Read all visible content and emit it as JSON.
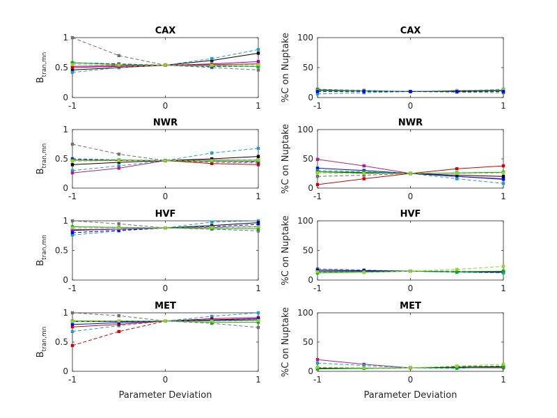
{
  "palette": {
    "black": "#000000",
    "gray": "#707070",
    "blue": "#0000ff",
    "cyan": "#1f9cc8",
    "purple": "#9400d3",
    "magenta": "#b0207a",
    "red": "#d00000",
    "green": "#00b000",
    "yellowgreen": "#9acd32",
    "olive": "#6b8e23"
  },
  "chart_data": [
    {
      "id": "left-cax",
      "type": "line",
      "title": "CAX",
      "ylabel_main": "B",
      "ylabel_sub": "tran,mn",
      "xlabel": "",
      "xlim": [
        -1,
        1
      ],
      "ylim": [
        0,
        1
      ],
      "xticks": [
        "-1",
        "0",
        "1"
      ],
      "yticks": [
        "0",
        "0.5",
        "1"
      ],
      "x": [
        -1,
        -0.5,
        0,
        0.5,
        1
      ],
      "series": [
        {
          "color": "gray",
          "dashed": true,
          "values": [
            1.0,
            0.7,
            0.54,
            0.5,
            0.46
          ]
        },
        {
          "color": "black",
          "dashed": false,
          "values": [
            0.46,
            0.5,
            0.54,
            0.62,
            0.74
          ]
        },
        {
          "color": "cyan",
          "dashed": true,
          "values": [
            0.42,
            0.5,
            0.54,
            0.65,
            0.8
          ]
        },
        {
          "color": "purple",
          "dashed": false,
          "values": [
            0.52,
            0.53,
            0.54,
            0.56,
            0.6
          ]
        },
        {
          "color": "blue",
          "dashed": true,
          "values": [
            0.58,
            0.56,
            0.54,
            0.52,
            0.52
          ]
        },
        {
          "color": "green",
          "dashed": false,
          "values": [
            0.58,
            0.55,
            0.54,
            0.53,
            0.52
          ]
        },
        {
          "color": "red",
          "dashed": false,
          "values": [
            0.5,
            0.52,
            0.54,
            0.55,
            0.56
          ]
        },
        {
          "color": "yellowgreen",
          "dashed": true,
          "values": [
            0.55,
            0.54,
            0.54,
            0.54,
            0.55
          ]
        }
      ]
    },
    {
      "id": "right-cax",
      "type": "line",
      "title": "CAX",
      "ylabel_main": "%C on Nuptake",
      "ylabel_sub": "",
      "xlabel": "",
      "xlim": [
        -1,
        1
      ],
      "ylim": [
        0,
        100
      ],
      "xticks": [
        "-1",
        "0",
        "1"
      ],
      "yticks": [
        "0",
        "50",
        "100"
      ],
      "x": [
        -1,
        -0.5,
        0,
        0.5,
        1
      ],
      "series": [
        {
          "color": "cyan",
          "dashed": true,
          "values": [
            6,
            8,
            10,
            11,
            14
          ]
        },
        {
          "color": "gray",
          "dashed": true,
          "values": [
            14,
            12,
            10,
            9,
            8
          ]
        },
        {
          "color": "black",
          "dashed": false,
          "values": [
            12,
            11,
            10,
            11,
            12
          ]
        },
        {
          "color": "green",
          "dashed": false,
          "values": [
            13,
            11,
            10,
            10,
            11
          ]
        },
        {
          "color": "yellowgreen",
          "dashed": true,
          "values": [
            11,
            10,
            10,
            12,
            13
          ]
        },
        {
          "color": "blue",
          "dashed": true,
          "values": [
            10,
            10,
            10,
            10,
            10
          ]
        }
      ]
    },
    {
      "id": "left-nwr",
      "type": "line",
      "title": "NWR",
      "ylabel_main": "B",
      "ylabel_sub": "tran,mn",
      "xlabel": "",
      "xlim": [
        -1,
        1
      ],
      "ylim": [
        0,
        1
      ],
      "xticks": [
        "-1",
        "0",
        "1"
      ],
      "yticks": [
        "0",
        "0.5",
        "1"
      ],
      "x": [
        -1,
        -0.5,
        0,
        0.5,
        1
      ],
      "series": [
        {
          "color": "gray",
          "dashed": true,
          "values": [
            0.75,
            0.58,
            0.47,
            0.44,
            0.43
          ]
        },
        {
          "color": "cyan",
          "dashed": true,
          "values": [
            0.3,
            0.38,
            0.47,
            0.6,
            0.68
          ]
        },
        {
          "color": "magenta",
          "dashed": false,
          "values": [
            0.26,
            0.34,
            0.47,
            0.48,
            0.48
          ]
        },
        {
          "color": "black",
          "dashed": false,
          "values": [
            0.4,
            0.44,
            0.47,
            0.5,
            0.54
          ]
        },
        {
          "color": "red",
          "dashed": false,
          "values": [
            0.48,
            0.47,
            0.47,
            0.42,
            0.4
          ]
        },
        {
          "color": "blue",
          "dashed": true,
          "values": [
            0.5,
            0.48,
            0.47,
            0.46,
            0.45
          ]
        },
        {
          "color": "green",
          "dashed": false,
          "values": [
            0.48,
            0.48,
            0.47,
            0.46,
            0.46
          ]
        },
        {
          "color": "yellowgreen",
          "dashed": true,
          "values": [
            0.46,
            0.47,
            0.47,
            0.47,
            0.48
          ]
        }
      ]
    },
    {
      "id": "right-nwr",
      "type": "line",
      "title": "NWR",
      "ylabel_main": "%C on Nuptake",
      "ylabel_sub": "",
      "xlabel": "",
      "xlim": [
        -1,
        1
      ],
      "ylim": [
        0,
        100
      ],
      "xticks": [
        "-1",
        "0",
        "1"
      ],
      "yticks": [
        "0",
        "50",
        "100"
      ],
      "x": [
        -1,
        -0.5,
        0,
        0.5,
        1
      ],
      "series": [
        {
          "color": "magenta",
          "dashed": false,
          "values": [
            49,
            38,
            25,
            20,
            16
          ]
        },
        {
          "color": "red",
          "dashed": false,
          "values": [
            6,
            16,
            25,
            33,
            38
          ]
        },
        {
          "color": "blue",
          "dashed": false,
          "values": [
            34,
            30,
            25,
            20,
            15
          ]
        },
        {
          "color": "cyan",
          "dashed": true,
          "values": [
            30,
            28,
            25,
            16,
            8
          ]
        },
        {
          "color": "black",
          "dashed": false,
          "values": [
            28,
            26,
            25,
            22,
            20
          ]
        },
        {
          "color": "gray",
          "dashed": true,
          "values": [
            20,
            22,
            25,
            26,
            27
          ]
        },
        {
          "color": "green",
          "dashed": false,
          "values": [
            28,
            27,
            25,
            26,
            27
          ]
        },
        {
          "color": "yellowgreen",
          "dashed": true,
          "values": [
            26,
            25,
            25,
            25,
            26
          ]
        }
      ]
    },
    {
      "id": "left-hvf",
      "type": "line",
      "title": "HVF",
      "ylabel_main": "B",
      "ylabel_sub": "tran,mn",
      "xlabel": "",
      "xlim": [
        -1,
        1
      ],
      "ylim": [
        0,
        1
      ],
      "xticks": [
        "-1",
        "0",
        "1"
      ],
      "yticks": [
        "0",
        "0.5",
        "1"
      ],
      "x": [
        -1,
        -0.5,
        0,
        0.5,
        1
      ],
      "series": [
        {
          "color": "gray",
          "dashed": true,
          "values": [
            1.0,
            0.95,
            0.88,
            0.86,
            0.83
          ]
        },
        {
          "color": "cyan",
          "dashed": true,
          "values": [
            0.76,
            0.83,
            0.88,
            0.98,
            1.0
          ]
        },
        {
          "color": "black",
          "dashed": false,
          "values": [
            0.84,
            0.86,
            0.88,
            0.92,
            0.97
          ]
        },
        {
          "color": "blue",
          "dashed": true,
          "values": [
            0.8,
            0.84,
            0.88,
            0.9,
            0.94
          ]
        },
        {
          "color": "purple",
          "dashed": false,
          "values": [
            0.85,
            0.86,
            0.88,
            0.89,
            0.9
          ]
        },
        {
          "color": "green",
          "dashed": false,
          "values": [
            0.9,
            0.89,
            0.88,
            0.87,
            0.87
          ]
        },
        {
          "color": "yellowgreen",
          "dashed": true,
          "values": [
            0.88,
            0.88,
            0.88,
            0.89,
            0.9
          ]
        }
      ]
    },
    {
      "id": "right-hvf",
      "type": "line",
      "title": "HVF",
      "ylabel_main": "%C on Nuptake",
      "ylabel_sub": "",
      "xlabel": "",
      "xlim": [
        -1,
        1
      ],
      "ylim": [
        0,
        100
      ],
      "xticks": [
        "-1",
        "0",
        "1"
      ],
      "yticks": [
        "0",
        "50",
        "100"
      ],
      "x": [
        -1,
        -0.5,
        0,
        0.5,
        1
      ],
      "series": [
        {
          "color": "gray",
          "dashed": true,
          "values": [
            19,
            17,
            15,
            15,
            14
          ]
        },
        {
          "color": "blue",
          "dashed": false,
          "values": [
            17,
            16,
            15,
            14,
            14
          ]
        },
        {
          "color": "black",
          "dashed": false,
          "values": [
            15,
            15,
            15,
            14,
            13
          ]
        },
        {
          "color": "cyan",
          "dashed": true,
          "values": [
            13,
            14,
            15,
            13,
            12
          ]
        },
        {
          "color": "green",
          "dashed": false,
          "values": [
            12,
            13,
            15,
            14,
            15
          ]
        },
        {
          "color": "yellowgreen",
          "dashed": true,
          "values": [
            14,
            13,
            15,
            18,
            23
          ]
        }
      ]
    },
    {
      "id": "left-met",
      "type": "line",
      "title": "MET",
      "ylabel_main": "B",
      "ylabel_sub": "tran,mn",
      "xlabel": "Parameter Deviation",
      "xlim": [
        -1,
        1
      ],
      "ylim": [
        0,
        1
      ],
      "xticks": [
        "-1",
        "0",
        "1"
      ],
      "yticks": [
        "0",
        "0.5",
        "1"
      ],
      "x": [
        -1,
        -0.5,
        0,
        0.5,
        1
      ],
      "series": [
        {
          "color": "gray",
          "dashed": true,
          "values": [
            1.0,
            0.95,
            0.86,
            0.82,
            0.75
          ]
        },
        {
          "color": "red",
          "dashed": true,
          "values": [
            0.44,
            0.68,
            0.86,
            0.88,
            0.9
          ]
        },
        {
          "color": "cyan",
          "dashed": true,
          "values": [
            0.68,
            0.78,
            0.86,
            0.94,
            1.0
          ]
        },
        {
          "color": "red",
          "dashed": false,
          "values": [
            0.76,
            0.8,
            0.86,
            0.9,
            0.92
          ]
        },
        {
          "color": "black",
          "dashed": false,
          "values": [
            0.85,
            0.85,
            0.86,
            0.87,
            0.88
          ]
        },
        {
          "color": "blue",
          "dashed": false,
          "values": [
            0.8,
            0.83,
            0.86,
            0.88,
            0.9
          ]
        },
        {
          "color": "green",
          "dashed": false,
          "values": [
            0.86,
            0.86,
            0.86,
            0.84,
            0.84
          ]
        },
        {
          "color": "yellowgreen",
          "dashed": true,
          "values": [
            0.85,
            0.86,
            0.86,
            0.86,
            0.87
          ]
        }
      ]
    },
    {
      "id": "right-met",
      "type": "line",
      "title": "MET",
      "ylabel_main": "%C on Nuptake",
      "ylabel_sub": "",
      "xlabel": "Parameter Deviation",
      "xlim": [
        -1,
        1
      ],
      "ylim": [
        0,
        100
      ],
      "xticks": [
        "-1",
        "0",
        "1"
      ],
      "yticks": [
        "0",
        "50",
        "100"
      ],
      "x": [
        -1,
        -0.5,
        0,
        0.5,
        1
      ],
      "series": [
        {
          "color": "magenta",
          "dashed": false,
          "values": [
            20,
            12,
            6,
            6,
            6
          ]
        },
        {
          "color": "cyan",
          "dashed": true,
          "values": [
            14,
            10,
            6,
            5,
            8
          ]
        },
        {
          "color": "gray",
          "dashed": true,
          "values": [
            6,
            6,
            6,
            8,
            9
          ]
        },
        {
          "color": "black",
          "dashed": false,
          "values": [
            5,
            5,
            6,
            7,
            8
          ]
        },
        {
          "color": "green",
          "dashed": false,
          "values": [
            4,
            5,
            6,
            6,
            7
          ]
        },
        {
          "color": "yellowgreen",
          "dashed": true,
          "values": [
            7,
            6,
            6,
            9,
            12
          ]
        }
      ]
    }
  ]
}
